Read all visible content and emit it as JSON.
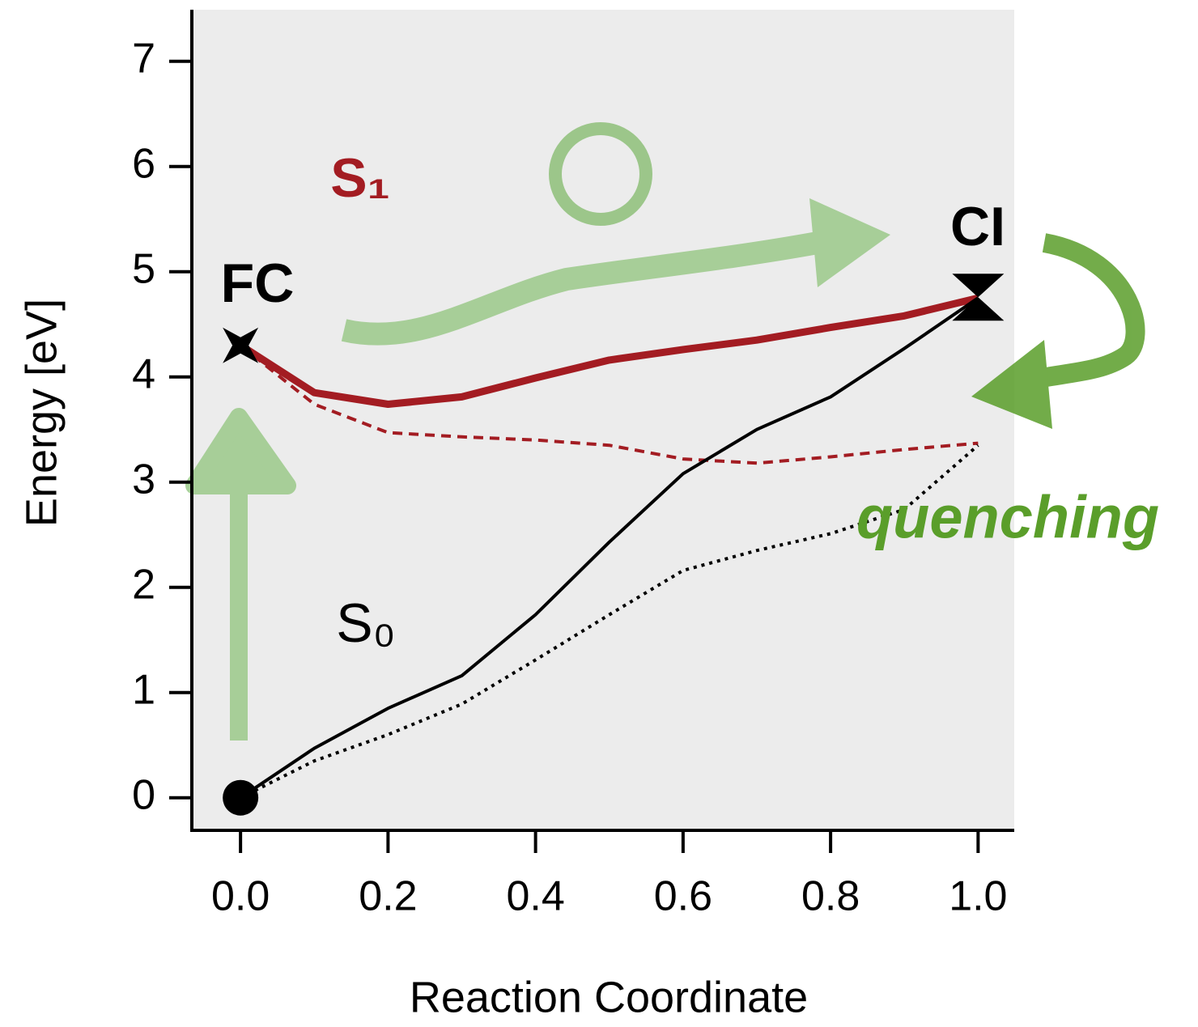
{
  "chart_data": {
    "type": "line",
    "xlabel": "Reaction Coordinate",
    "ylabel": "Energy [eV]",
    "xlim": [
      -0.066,
      1.049
    ],
    "ylim": [
      -0.31,
      7.49
    ],
    "xticks": [
      {
        "value": 0,
        "label": "0.0"
      },
      0.2,
      0.4,
      0.6,
      0.8,
      {
        "value": 1,
        "label": "1.0"
      }
    ],
    "yticks": [
      0,
      1,
      2,
      3,
      4,
      5,
      6,
      7
    ],
    "x": [
      0,
      0.1,
      0.2,
      0.3,
      0.4,
      0.5,
      0.6,
      0.7,
      0.8,
      0.9,
      1.0
    ],
    "series": [
      {
        "color": "#a31c22",
        "style": "solid",
        "width": 9,
        "values": [
          4.3,
          3.85,
          3.74,
          3.81,
          3.99,
          4.16,
          4.26,
          4.35,
          4.47,
          4.58,
          4.75
        ]
      },
      {
        "color": "#a31c22",
        "style": "dashed",
        "width": 4,
        "values": [
          4.3,
          3.74,
          3.47,
          3.43,
          3.4,
          3.35,
          3.22,
          3.18,
          3.24,
          3.31,
          3.37
        ]
      },
      {
        "color": "#000000",
        "style": "solid",
        "width": 4,
        "values": [
          0,
          0.47,
          0.85,
          1.16,
          1.74,
          2.43,
          3.08,
          3.5,
          3.81,
          4.27,
          4.75
        ]
      },
      {
        "color": "#000000",
        "style": "dotted",
        "width": 4,
        "values": [
          0,
          0.35,
          0.6,
          0.89,
          1.31,
          1.74,
          2.16,
          2.35,
          2.51,
          2.74,
          3.35
        ]
      }
    ],
    "markers": [
      {
        "x": 0,
        "y": 0,
        "shape": "circle"
      },
      {
        "x": 0,
        "y": 4.3,
        "shape": "star"
      },
      {
        "x": 1,
        "y": 4.75,
        "shape": "hourglass"
      }
    ],
    "annotations": [
      "FC",
      "CI",
      "S₁",
      "S₀",
      "quenching"
    ]
  }
}
